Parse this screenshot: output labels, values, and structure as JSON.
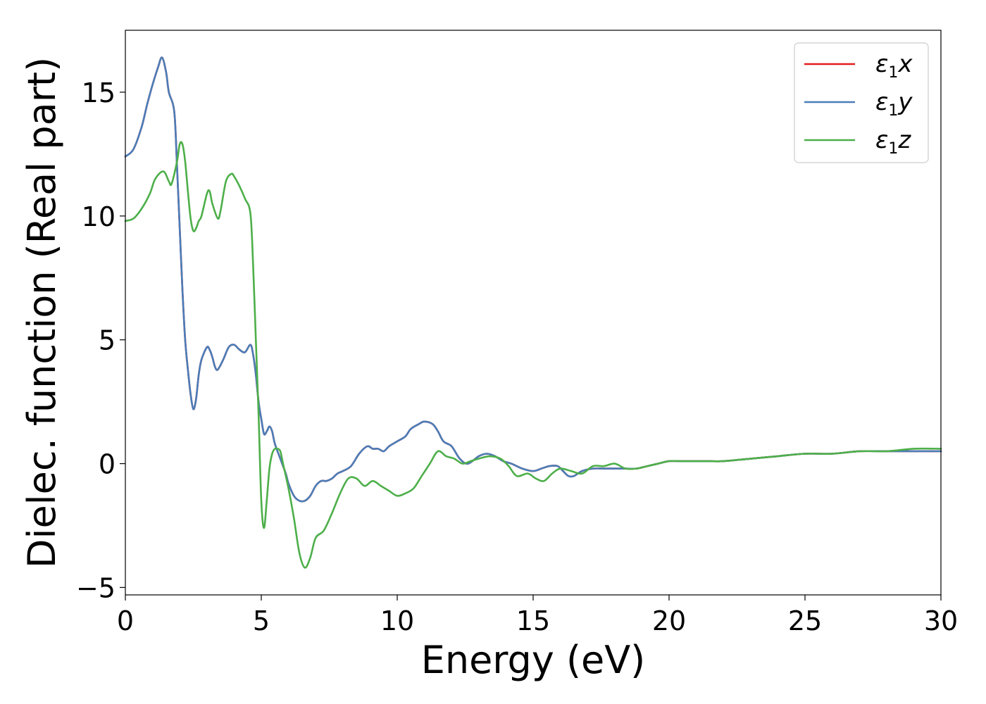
{
  "chart_data": {
    "type": "line",
    "xlabel": "Energy (eV)",
    "ylabel": "Dielec. function (Real part)",
    "xlim": [
      0,
      30
    ],
    "ylim": [
      -5.3,
      17.5
    ],
    "x_ticks": [
      0,
      5,
      10,
      15,
      20,
      25,
      30
    ],
    "y_ticks": [
      -5,
      0,
      5,
      10,
      15
    ],
    "y_tick_labels": [
      "−5",
      "0",
      "5",
      "10",
      "15"
    ],
    "grid": false,
    "legend_position": "top-right",
    "series": [
      {
        "name": "ε1x",
        "symbol": "ε",
        "sub": "1",
        "axis": "x",
        "color": "#e41a1c",
        "x": [
          0,
          0.3,
          0.6,
          0.8,
          1.0,
          1.2,
          1.35,
          1.5,
          1.6,
          1.8,
          1.9,
          2.0,
          2.1,
          2.2,
          2.3,
          2.4,
          2.5,
          2.6,
          2.7,
          2.8,
          3.0,
          3.1,
          3.2,
          3.3,
          3.4,
          3.6,
          3.8,
          4.0,
          4.2,
          4.4,
          4.6,
          4.7,
          4.8,
          4.9,
          5.0,
          5.1,
          5.2,
          5.3,
          5.4,
          5.5,
          5.7,
          5.9,
          6.0,
          6.2,
          6.4,
          6.6,
          6.8,
          7.0,
          7.2,
          7.4,
          7.6,
          7.8,
          8.0,
          8.3,
          8.6,
          8.9,
          9.1,
          9.3,
          9.5,
          9.7,
          10.0,
          10.3,
          10.5,
          10.8,
          11.0,
          11.3,
          11.5,
          11.7,
          12.0,
          12.3,
          12.6,
          13.0,
          13.3,
          13.6,
          13.9,
          14.2,
          14.6,
          15.0,
          15.3,
          15.6,
          15.9,
          16.1,
          16.3,
          16.5,
          16.8,
          17.2,
          17.6,
          18.0,
          18.4,
          18.8,
          19.2,
          19.6,
          20.0,
          20.5,
          21.0,
          21.5,
          22.0,
          23.0,
          24.0,
          25.0,
          26.0,
          27.0,
          28.0,
          29.0,
          30.0
        ],
        "y": [
          12.4,
          12.7,
          13.6,
          14.5,
          15.3,
          16.0,
          16.4,
          15.8,
          15.0,
          14.2,
          12.0,
          9.5,
          7.0,
          5.0,
          3.8,
          2.8,
          2.2,
          2.6,
          3.6,
          4.2,
          4.7,
          4.6,
          4.3,
          3.9,
          3.8,
          4.2,
          4.7,
          4.8,
          4.6,
          4.5,
          4.8,
          4.4,
          3.6,
          2.5,
          1.8,
          1.2,
          1.3,
          1.5,
          1.3,
          0.8,
          0.2,
          -0.4,
          -0.8,
          -1.3,
          -1.5,
          -1.5,
          -1.3,
          -0.9,
          -0.7,
          -0.7,
          -0.6,
          -0.4,
          -0.3,
          -0.1,
          0.4,
          0.7,
          0.6,
          0.6,
          0.5,
          0.7,
          0.9,
          1.1,
          1.4,
          1.6,
          1.7,
          1.6,
          1.3,
          0.9,
          0.7,
          0.2,
          0.0,
          0.3,
          0.4,
          0.3,
          0.1,
          0.0,
          -0.2,
          -0.3,
          -0.2,
          -0.1,
          -0.1,
          -0.3,
          -0.5,
          -0.5,
          -0.3,
          -0.2,
          -0.2,
          -0.2,
          -0.2,
          -0.2,
          -0.1,
          0.0,
          0.1,
          0.1,
          0.1,
          0.1,
          0.1,
          0.2,
          0.3,
          0.4,
          0.4,
          0.5,
          0.5,
          0.5,
          0.5
        ]
      },
      {
        "name": "ε1y",
        "symbol": "ε",
        "sub": "1",
        "axis": "y",
        "color": "#4a7db8",
        "x": [
          0,
          0.3,
          0.6,
          0.8,
          1.0,
          1.2,
          1.35,
          1.5,
          1.6,
          1.8,
          1.9,
          2.0,
          2.1,
          2.2,
          2.3,
          2.4,
          2.5,
          2.6,
          2.7,
          2.8,
          3.0,
          3.1,
          3.2,
          3.3,
          3.4,
          3.6,
          3.8,
          4.0,
          4.2,
          4.4,
          4.6,
          4.7,
          4.8,
          4.9,
          5.0,
          5.1,
          5.2,
          5.3,
          5.4,
          5.5,
          5.7,
          5.9,
          6.0,
          6.2,
          6.4,
          6.6,
          6.8,
          7.0,
          7.2,
          7.4,
          7.6,
          7.8,
          8.0,
          8.3,
          8.6,
          8.9,
          9.1,
          9.3,
          9.5,
          9.7,
          10.0,
          10.3,
          10.5,
          10.8,
          11.0,
          11.3,
          11.5,
          11.7,
          12.0,
          12.3,
          12.6,
          13.0,
          13.3,
          13.6,
          13.9,
          14.2,
          14.6,
          15.0,
          15.3,
          15.6,
          15.9,
          16.1,
          16.3,
          16.5,
          16.8,
          17.2,
          17.6,
          18.0,
          18.4,
          18.8,
          19.2,
          19.6,
          20.0,
          20.5,
          21.0,
          21.5,
          22.0,
          23.0,
          24.0,
          25.0,
          26.0,
          27.0,
          28.0,
          29.0,
          30.0
        ],
        "y": [
          12.4,
          12.7,
          13.6,
          14.5,
          15.3,
          16.0,
          16.4,
          15.8,
          15.0,
          14.2,
          12.0,
          9.5,
          7.0,
          5.0,
          3.8,
          2.8,
          2.2,
          2.6,
          3.6,
          4.2,
          4.7,
          4.6,
          4.3,
          3.9,
          3.8,
          4.2,
          4.7,
          4.8,
          4.6,
          4.5,
          4.8,
          4.4,
          3.6,
          2.5,
          1.8,
          1.2,
          1.3,
          1.5,
          1.3,
          0.8,
          0.2,
          -0.4,
          -0.8,
          -1.3,
          -1.5,
          -1.5,
          -1.3,
          -0.9,
          -0.7,
          -0.7,
          -0.6,
          -0.4,
          -0.3,
          -0.1,
          0.4,
          0.7,
          0.6,
          0.6,
          0.5,
          0.7,
          0.9,
          1.1,
          1.4,
          1.6,
          1.7,
          1.6,
          1.3,
          0.9,
          0.7,
          0.2,
          0.0,
          0.3,
          0.4,
          0.3,
          0.1,
          0.0,
          -0.2,
          -0.3,
          -0.2,
          -0.1,
          -0.1,
          -0.3,
          -0.5,
          -0.5,
          -0.3,
          -0.2,
          -0.2,
          -0.2,
          -0.2,
          -0.2,
          -0.1,
          0.0,
          0.1,
          0.1,
          0.1,
          0.1,
          0.1,
          0.2,
          0.3,
          0.4,
          0.4,
          0.5,
          0.5,
          0.5,
          0.5
        ]
      },
      {
        "name": "ε1z",
        "symbol": "ε",
        "sub": "1",
        "axis": "z",
        "color": "#4daf4a",
        "x": [
          0,
          0.3,
          0.6,
          0.9,
          1.1,
          1.4,
          1.6,
          1.7,
          1.9,
          2.0,
          2.1,
          2.2,
          2.3,
          2.4,
          2.5,
          2.6,
          2.7,
          2.8,
          3.0,
          3.1,
          3.2,
          3.4,
          3.5,
          3.7,
          3.9,
          4.0,
          4.2,
          4.4,
          4.6,
          4.7,
          4.8,
          4.9,
          5.0,
          5.1,
          5.2,
          5.3,
          5.4,
          5.5,
          5.6,
          5.7,
          5.8,
          6.0,
          6.2,
          6.4,
          6.6,
          6.8,
          7.0,
          7.3,
          7.6,
          7.9,
          8.2,
          8.5,
          8.8,
          9.1,
          9.4,
          9.7,
          10.0,
          10.3,
          10.6,
          10.9,
          11.2,
          11.5,
          11.8,
          12.1,
          12.4,
          12.7,
          13.0,
          13.4,
          13.8,
          14.1,
          14.4,
          14.8,
          15.1,
          15.4,
          15.7,
          16.0,
          16.4,
          16.8,
          17.2,
          17.6,
          18.0,
          18.4,
          18.8,
          19.2,
          19.6,
          20.0,
          20.5,
          21.0,
          21.5,
          22.0,
          23.0,
          24.0,
          25.0,
          26.0,
          27.0,
          28.0,
          29.0,
          30.0
        ],
        "y": [
          9.8,
          9.9,
          10.3,
          10.9,
          11.5,
          11.8,
          11.4,
          11.3,
          12.2,
          12.9,
          12.9,
          12.2,
          11.0,
          9.9,
          9.4,
          9.5,
          9.8,
          10.0,
          10.9,
          11.0,
          10.5,
          9.9,
          10.2,
          11.4,
          11.7,
          11.6,
          11.2,
          10.7,
          10.1,
          8.0,
          5.0,
          2.0,
          -1.5,
          -2.6,
          -1.5,
          -0.2,
          0.4,
          0.6,
          0.6,
          0.5,
          0.0,
          -1.0,
          -2.2,
          -3.6,
          -4.2,
          -3.8,
          -3.0,
          -2.7,
          -2.0,
          -1.2,
          -0.6,
          -0.6,
          -0.9,
          -0.7,
          -0.9,
          -1.1,
          -1.3,
          -1.2,
          -1.0,
          -0.5,
          0.0,
          0.5,
          0.3,
          0.2,
          0.0,
          0.1,
          0.2,
          0.3,
          0.2,
          -0.1,
          -0.5,
          -0.4,
          -0.6,
          -0.7,
          -0.4,
          -0.2,
          -0.3,
          -0.4,
          -0.1,
          -0.1,
          0.0,
          -0.2,
          -0.2,
          -0.1,
          0.0,
          0.1,
          0.1,
          0.1,
          0.1,
          0.1,
          0.2,
          0.3,
          0.4,
          0.4,
          0.5,
          0.5,
          0.6,
          0.6
        ]
      }
    ]
  }
}
